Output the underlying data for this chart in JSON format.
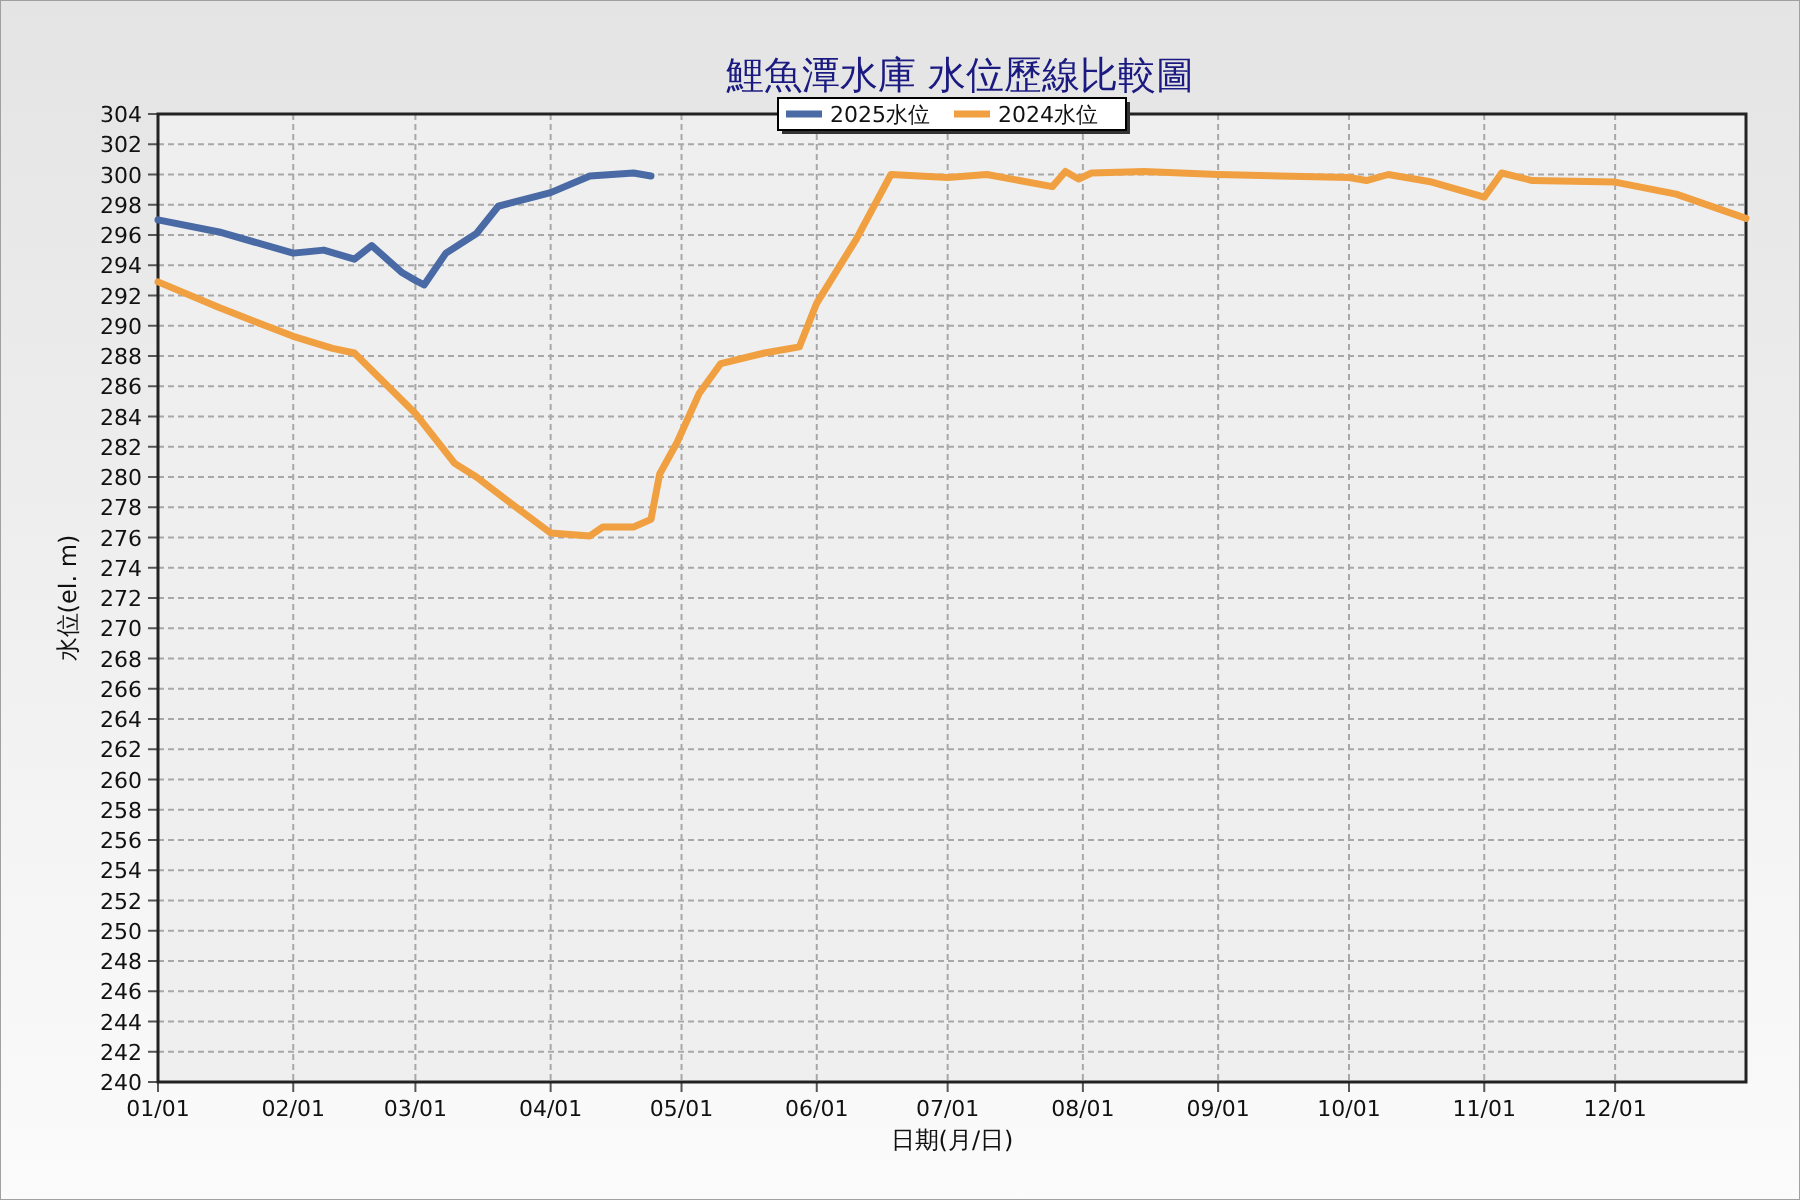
{
  "chart_data": {
    "type": "line",
    "title": "鯉魚潭水庫 水位歷線比較圖",
    "xlabel": "日期(月/日)",
    "ylabel": "水位(el. m)",
    "series": [
      {
        "name": "2025水位",
        "color": "#4a6aa5",
        "x": [
          "--01-01",
          "--01-15",
          "--02-01",
          "--02-08",
          "--02-15",
          "--02-19",
          "--02-26",
          "--03-01",
          "--03-03",
          "--03-08",
          "--03-15",
          "--03-20",
          "--04-01",
          "--04-10",
          "--04-20",
          "--04-24"
        ],
        "values": [
          297.0,
          296.2,
          294.8,
          295.0,
          294.4,
          295.3,
          293.5,
          293.0,
          292.7,
          294.8,
          296.1,
          297.9,
          298.8,
          299.9,
          300.1,
          299.9
        ]
      },
      {
        "name": "2024水位",
        "color": "#f0a040",
        "x": [
          "--01-01",
          "--01-15",
          "--02-01",
          "--02-10",
          "--02-15",
          "--03-01",
          "--03-10",
          "--03-15",
          "--03-25",
          "--04-01",
          "--04-10",
          "--04-13",
          "--04-20",
          "--04-24",
          "--04-26",
          "--04-30",
          "--05-05",
          "--05-10",
          "--05-20",
          "--05-28",
          "--06-01",
          "--06-10",
          "--06-18",
          "--07-01",
          "--07-10",
          "--07-25",
          "--07-28",
          "--07-31",
          "--08-03",
          "--08-15",
          "--09-01",
          "--09-15",
          "--10-01",
          "--10-05",
          "--10-10",
          "--10-20",
          "--11-01",
          "--11-05",
          "--11-12",
          "--12-01",
          "--12-15",
          "--12-31"
        ],
        "values": [
          292.9,
          291.2,
          289.3,
          288.5,
          288.2,
          284.2,
          280.9,
          280.0,
          277.8,
          276.3,
          276.1,
          276.7,
          276.7,
          277.2,
          280.2,
          282.3,
          285.5,
          287.5,
          288.2,
          288.6,
          291.5,
          295.7,
          300.0,
          299.8,
          300.0,
          299.2,
          300.2,
          299.7,
          300.1,
          300.2,
          300.0,
          299.9,
          299.8,
          299.6,
          300.0,
          299.5,
          298.5,
          300.1,
          299.6,
          299.5,
          298.7,
          297.1
        ]
      }
    ],
    "xlim": [
      "--01-01",
      "--12-31"
    ],
    "xticks": [
      {
        "value": "--01-01",
        "label": "01/01"
      },
      {
        "value": "--02-01",
        "label": "02/01"
      },
      {
        "value": "--03-01",
        "label": "03/01"
      },
      {
        "value": "--04-01",
        "label": "04/01"
      },
      {
        "value": "--05-01",
        "label": "05/01"
      },
      {
        "value": "--06-01",
        "label": "06/01"
      },
      {
        "value": "--07-01",
        "label": "07/01"
      },
      {
        "value": "--08-01",
        "label": "08/01"
      },
      {
        "value": "--09-01",
        "label": "09/01"
      },
      {
        "value": "--10-01",
        "label": "10/01"
      },
      {
        "value": "--11-01",
        "label": "11/01"
      },
      {
        "value": "--12-01",
        "label": "12/01"
      }
    ],
    "ylim": [
      240,
      304
    ],
    "yticks": [
      240,
      242,
      244,
      246,
      248,
      250,
      252,
      254,
      256,
      258,
      260,
      262,
      264,
      266,
      268,
      270,
      272,
      274,
      276,
      278,
      280,
      282,
      284,
      286,
      288,
      290,
      292,
      294,
      296,
      298,
      300,
      302,
      304
    ],
    "grid": true,
    "legend": "top",
    "line_style": "solid"
  }
}
